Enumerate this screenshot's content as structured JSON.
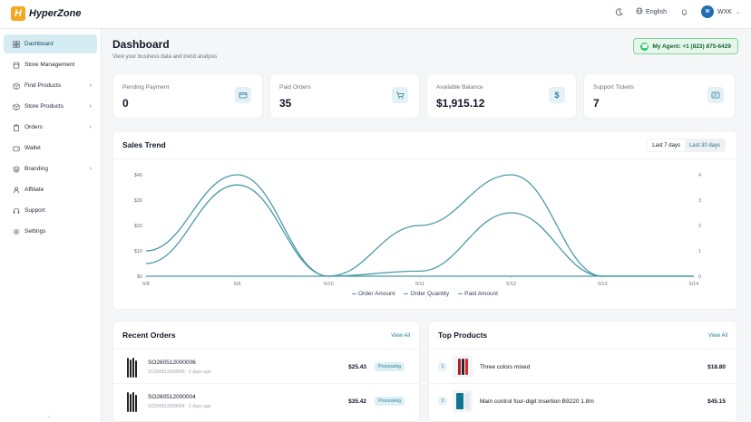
{
  "app": {
    "logo_mark": "H",
    "logo_text": "HyperZone"
  },
  "topbar": {
    "theme_icon": "moon-icon",
    "language": "English",
    "notif_icon": "bell-icon",
    "avatar_initials": "W",
    "user_name": "WXK"
  },
  "sidebar": {
    "items": [
      {
        "label": "Dashboard",
        "icon": "grid-icon",
        "active": true,
        "has_children": false
      },
      {
        "label": "Store Management",
        "icon": "store-icon",
        "active": false,
        "has_children": false
      },
      {
        "label": "Find Products",
        "icon": "box-icon",
        "active": false,
        "has_children": true
      },
      {
        "label": "Store Products",
        "icon": "box-icon",
        "active": false,
        "has_children": true
      },
      {
        "label": "Orders",
        "icon": "clipboard-icon",
        "active": false,
        "has_children": true
      },
      {
        "label": "Wallet",
        "icon": "wallet-icon",
        "active": false,
        "has_children": false
      },
      {
        "label": "Branding",
        "icon": "layers-icon",
        "active": false,
        "has_children": true
      },
      {
        "label": "Affiliate",
        "icon": "user-icon",
        "active": false,
        "has_children": false
      },
      {
        "label": "Support",
        "icon": "headset-icon",
        "active": false,
        "has_children": false
      },
      {
        "label": "Settings",
        "icon": "gear-icon",
        "active": false,
        "has_children": false
      }
    ]
  },
  "header": {
    "title": "Dashboard",
    "subtitle": "View your business data and trend analysis",
    "agent": "My Agent: +1 (823) 875-6429"
  },
  "stats": [
    {
      "label": "Pending Payment",
      "value": "0",
      "icon": "card-icon"
    },
    {
      "label": "Paid Orders",
      "value": "35",
      "icon": "cart-icon"
    },
    {
      "label": "Available Balance",
      "value": "$1,915.12",
      "icon": "dollar-icon"
    },
    {
      "label": "Support Tickets",
      "value": "7",
      "icon": "ticket-icon"
    }
  ],
  "sales": {
    "title": "Sales Trend",
    "ranges": [
      "Last 7 days",
      "Last 30 days"
    ],
    "selected_range": "Last 7 days"
  },
  "chart_data": {
    "type": "line",
    "x": [
      "5/8",
      "5/9",
      "5/10",
      "5/11",
      "5/12",
      "5/13",
      "5/14"
    ],
    "series": [
      {
        "name": "Order Amount",
        "axis": "left",
        "values": [
          5,
          36,
          0,
          2,
          25,
          0,
          0
        ]
      },
      {
        "name": "Order Quantity",
        "axis": "right",
        "values": [
          1,
          4,
          0,
          2,
          4,
          0,
          0
        ]
      },
      {
        "name": "Paid Amount",
        "axis": "left",
        "values": [
          0,
          0,
          0,
          0,
          0,
          0,
          0
        ]
      }
    ],
    "yleft_ticks": [
      "$0",
      "$10",
      "$20",
      "$30",
      "$40"
    ],
    "yleft_range": [
      0,
      40
    ],
    "yright_ticks": [
      "0",
      "1",
      "2",
      "3",
      "4"
    ],
    "yright_range": [
      0,
      4
    ],
    "color": "#4a9aa8",
    "legend": "bottom",
    "grid": false
  },
  "recent_orders": {
    "title": "Recent Orders",
    "view_all": "View All",
    "rows": [
      {
        "id": "SO260512000006",
        "meta": "SO260512000006 · 2 days ago",
        "amount": "$25.43",
        "status": "Processing"
      },
      {
        "id": "SO260512000004",
        "meta": "SO260512000004 · 2 days ago",
        "amount": "$35.42",
        "status": "Processing"
      }
    ]
  },
  "top_products": {
    "title": "Top Products",
    "view_all": "View All",
    "rows": [
      {
        "rank": "1",
        "name": "Three colors mixed",
        "price": "$18.80"
      },
      {
        "rank": "2",
        "name": "Main control four-digit insertion B9220 1.8m",
        "price": "$45.15"
      }
    ]
  }
}
